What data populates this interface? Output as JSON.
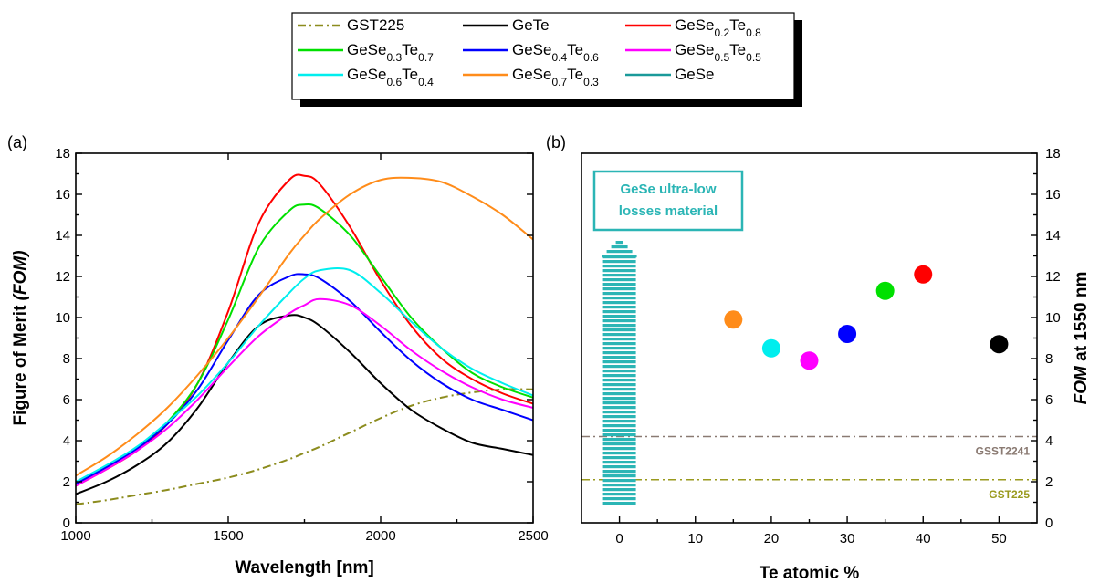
{
  "legend": {
    "entries": [
      {
        "series": "GST225",
        "label": [
          {
            "t": "GST225"
          }
        ]
      },
      {
        "series": "GeTe",
        "label": [
          {
            "t": "GeTe"
          }
        ]
      },
      {
        "series": "GeSe0.2Te0.8",
        "label": [
          {
            "t": "GeSe"
          },
          {
            "t": "0.2",
            "sub": true
          },
          {
            "t": "Te"
          },
          {
            "t": "0.8",
            "sub": true
          }
        ]
      },
      {
        "series": "GeSe0.3Te0.7",
        "label": [
          {
            "t": "GeSe"
          },
          {
            "t": "0.3",
            "sub": true
          },
          {
            "t": "Te"
          },
          {
            "t": "0.7",
            "sub": true
          }
        ]
      },
      {
        "series": "GeSe0.4Te0.6",
        "label": [
          {
            "t": "GeSe"
          },
          {
            "t": "0.4",
            "sub": true
          },
          {
            "t": "Te"
          },
          {
            "t": "0.6",
            "sub": true
          }
        ]
      },
      {
        "series": "GeSe0.5Te0.5",
        "label": [
          {
            "t": "GeSe"
          },
          {
            "t": "0.5",
            "sub": true
          },
          {
            "t": "Te"
          },
          {
            "t": "0.5",
            "sub": true
          }
        ]
      },
      {
        "series": "GeSe0.6Te0.4",
        "label": [
          {
            "t": "GeSe"
          },
          {
            "t": "0.6",
            "sub": true
          },
          {
            "t": "Te"
          },
          {
            "t": "0.4",
            "sub": true
          }
        ]
      },
      {
        "series": "GeSe0.7Te0.3",
        "label": [
          {
            "t": "GeSe"
          },
          {
            "t": "0.7",
            "sub": true
          },
          {
            "t": "Te"
          },
          {
            "t": "0.3",
            "sub": true
          }
        ]
      },
      {
        "series": "GeSe",
        "label": [
          {
            "t": "GeSe"
          }
        ]
      }
    ]
  },
  "chart_data": [
    {
      "type": "line",
      "panel_label": "(a)",
      "xlabel": "Wavelength [nm]",
      "ylabel": [
        {
          "t": "Figure of Merit "
        },
        {
          "t": "(FOM)",
          "italic": true
        }
      ],
      "xlim": [
        1000,
        2500
      ],
      "ylim": [
        0,
        18
      ],
      "xticks": [
        1000,
        1500,
        2000,
        2500
      ],
      "yticks": [
        0,
        2,
        4,
        6,
        8,
        10,
        12,
        14,
        16,
        18
      ],
      "x": [
        1000,
        1100,
        1200,
        1300,
        1400,
        1500,
        1600,
        1700,
        1750,
        1800,
        1900,
        2000,
        2100,
        2200,
        2300,
        2400,
        2500
      ],
      "series": [
        {
          "name": "GST225",
          "color": "#8c8c1e",
          "dash": "dashdot",
          "values": [
            0.9,
            1.1,
            1.35,
            1.6,
            1.9,
            2.2,
            2.6,
            3.1,
            3.4,
            3.7,
            4.4,
            5.1,
            5.7,
            6.1,
            6.35,
            6.5,
            6.5
          ]
        },
        {
          "name": "GeTe",
          "color": "#000000",
          "values": [
            1.4,
            2.0,
            2.8,
            3.9,
            5.6,
            7.8,
            9.6,
            10.1,
            10.0,
            9.6,
            8.3,
            6.8,
            5.5,
            4.6,
            3.9,
            3.6,
            3.3
          ]
        },
        {
          "name": "GeSe0.2Te0.8",
          "color": "#ff0000",
          "values": [
            1.8,
            2.6,
            3.5,
            4.8,
            6.8,
            10.3,
            14.6,
            16.7,
            16.9,
            16.5,
            14.4,
            11.8,
            9.6,
            8.0,
            7.0,
            6.3,
            5.8
          ]
        },
        {
          "name": "GeSe0.3Te0.7",
          "color": "#00e000",
          "values": [
            1.9,
            2.7,
            3.6,
            4.9,
            6.8,
            9.9,
            13.4,
            15.2,
            15.5,
            15.3,
            14.0,
            12.0,
            10.0,
            8.5,
            7.3,
            6.6,
            6.1
          ]
        },
        {
          "name": "GeSe0.4Te0.6",
          "color": "#0000ff",
          "values": [
            1.9,
            2.7,
            3.6,
            4.8,
            6.5,
            8.9,
            11.1,
            12.0,
            12.1,
            11.9,
            10.8,
            9.3,
            7.9,
            6.8,
            6.0,
            5.5,
            5.0
          ]
        },
        {
          "name": "GeSe0.5Te0.5",
          "color": "#ff00ff",
          "values": [
            1.8,
            2.6,
            3.5,
            4.6,
            6.0,
            7.6,
            9.1,
            10.2,
            10.6,
            10.9,
            10.6,
            9.6,
            8.4,
            7.4,
            6.6,
            6.0,
            5.6
          ]
        },
        {
          "name": "GeSe0.6Te0.4",
          "color": "#00eeee",
          "values": [
            2.0,
            2.8,
            3.7,
            4.9,
            6.2,
            7.8,
            9.6,
            11.2,
            11.9,
            12.3,
            12.3,
            11.2,
            9.8,
            8.5,
            7.5,
            6.8,
            6.2
          ]
        },
        {
          "name": "GeSe0.7Te0.3",
          "color": "#ff8c1a",
          "values": [
            2.3,
            3.2,
            4.3,
            5.6,
            7.2,
            9.0,
            11.0,
            13.1,
            14.0,
            14.8,
            16.0,
            16.7,
            16.8,
            16.6,
            15.9,
            15.0,
            13.8
          ]
        }
      ]
    },
    {
      "type": "scatter",
      "panel_label": "(b)",
      "xlabel": "Te atomic %",
      "ylabel": [
        {
          "t": "FOM",
          "italic": true
        },
        {
          "t": " at 1550 nm"
        }
      ],
      "xlim": [
        -5,
        55
      ],
      "ylim": [
        0,
        18
      ],
      "xticks": [
        0,
        10,
        20,
        30,
        40,
        50
      ],
      "yticks": [
        0,
        2,
        4,
        6,
        8,
        10,
        12,
        14,
        16,
        18
      ],
      "points": [
        {
          "x": 15,
          "y": 9.9,
          "color": "#ff8c1a"
        },
        {
          "x": 20,
          "y": 8.5,
          "color": "#00eeee"
        },
        {
          "x": 25,
          "y": 7.9,
          "color": "#ff00ff"
        },
        {
          "x": 30,
          "y": 9.2,
          "color": "#0000ff"
        },
        {
          "x": 35,
          "y": 11.3,
          "color": "#00e000"
        },
        {
          "x": 40,
          "y": 12.1,
          "color": "#ff0000"
        },
        {
          "x": 50,
          "y": 8.7,
          "color": "#000000"
        }
      ],
      "reference_lines": [
        {
          "label": "GSST2241",
          "y": 4.2,
          "color": "#8a7a72"
        },
        {
          "label": "GST225",
          "y": 2.1,
          "color": "#9a9a1e"
        }
      ],
      "annotation": {
        "lines": [
          "GeSe ultra-low",
          "losses material"
        ],
        "arrow_x": 0,
        "color": "#2bb5b5"
      }
    }
  ]
}
